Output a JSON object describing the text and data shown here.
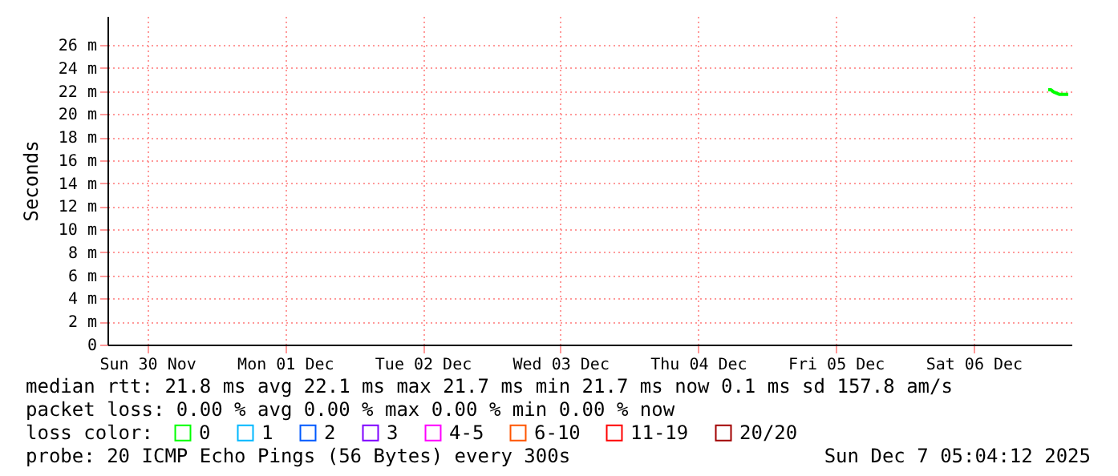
{
  "chart_data": {
    "type": "line",
    "ylabel": "Seconds",
    "legend_title": "loss color:",
    "legend": "bottom",
    "grid": true,
    "marker": "none",
    "line_style": "solid",
    "xlim": [
      "2025-11-30T05:04",
      "2025-12-07T05:04"
    ],
    "xticks": [
      {
        "value": "2025-11-30T12:00",
        "label": "Sun 30 Nov"
      },
      {
        "value": "2025-12-01T12:00",
        "label": "Mon 01 Dec"
      },
      {
        "value": "2025-12-02T12:00",
        "label": "Tue 02 Dec"
      },
      {
        "value": "2025-12-03T12:00",
        "label": "Wed 03 Dec"
      },
      {
        "value": "2025-12-04T12:00",
        "label": "Thu 04 Dec"
      },
      {
        "value": "2025-12-05T12:00",
        "label": "Fri 05 Dec"
      },
      {
        "value": "2025-12-06T12:00",
        "label": "Sat 06 Dec"
      }
    ],
    "ylim": [
      0,
      28.5
    ],
    "yticks": [
      {
        "value": 0,
        "label": "0"
      },
      {
        "value": 2,
        "label": "2 m"
      },
      {
        "value": 4,
        "label": "4 m"
      },
      {
        "value": 6,
        "label": "6 m"
      },
      {
        "value": 8,
        "label": "8 m"
      },
      {
        "value": 10,
        "label": "10 m"
      },
      {
        "value": 12,
        "label": "12 m"
      },
      {
        "value": 14,
        "label": "14 m"
      },
      {
        "value": 16,
        "label": "16 m"
      },
      {
        "value": 18,
        "label": "18 m"
      },
      {
        "value": 20,
        "label": "20 m"
      },
      {
        "value": 22,
        "label": "22 m"
      },
      {
        "value": 24,
        "label": "24 m"
      },
      {
        "value": 26,
        "label": "26 m"
      }
    ],
    "x": [
      "2025-12-07T01:00",
      "2025-12-07T01:30",
      "2025-12-07T02:00",
      "2025-12-07T02:30",
      "2025-12-07T03:00",
      "2025-12-07T03:30",
      "2025-12-07T04:00",
      "2025-12-07T04:30"
    ],
    "series": [
      {
        "name": "0",
        "color": "#00ff00",
        "values": [
          22.1,
          22.1,
          21.9,
          21.8,
          21.7,
          21.7,
          21.7,
          21.7
        ]
      },
      {
        "name": "1",
        "color": "#00b8ff",
        "values": [
          null,
          null,
          null,
          null,
          null,
          null,
          null,
          null
        ]
      },
      {
        "name": "2",
        "color": "#0059ff",
        "values": [
          null,
          null,
          null,
          null,
          null,
          null,
          null,
          null
        ]
      },
      {
        "name": "3",
        "color": "#7e00ff",
        "values": [
          null,
          null,
          null,
          null,
          null,
          null,
          null,
          null
        ]
      },
      {
        "name": "4-5",
        "color": "#ff00ff",
        "values": [
          null,
          null,
          null,
          null,
          null,
          null,
          null,
          null
        ]
      },
      {
        "name": "6-10",
        "color": "#ff5500",
        "values": [
          null,
          null,
          null,
          null,
          null,
          null,
          null,
          null
        ]
      },
      {
        "name": "11-19",
        "color": "#ff0000",
        "values": [
          null,
          null,
          null,
          null,
          null,
          null,
          null,
          null
        ]
      },
      {
        "name": "20/20",
        "color": "#a10000",
        "values": [
          null,
          null,
          null,
          null,
          null,
          null,
          null,
          null
        ]
      }
    ],
    "annotations": [
      "median rtt:  21.8 ms avg  22.1 ms max  21.7 ms min  21.7 ms now  0.1 ms sd  157.8   am/s",
      "packet loss: 0.00 % avg  0.00 % max  0.00 % min  0.00 % now",
      "probe:       20 ICMP Echo Pings (56 Bytes) every 300s",
      "Sun Dec  7 05:04:12 2025"
    ]
  }
}
